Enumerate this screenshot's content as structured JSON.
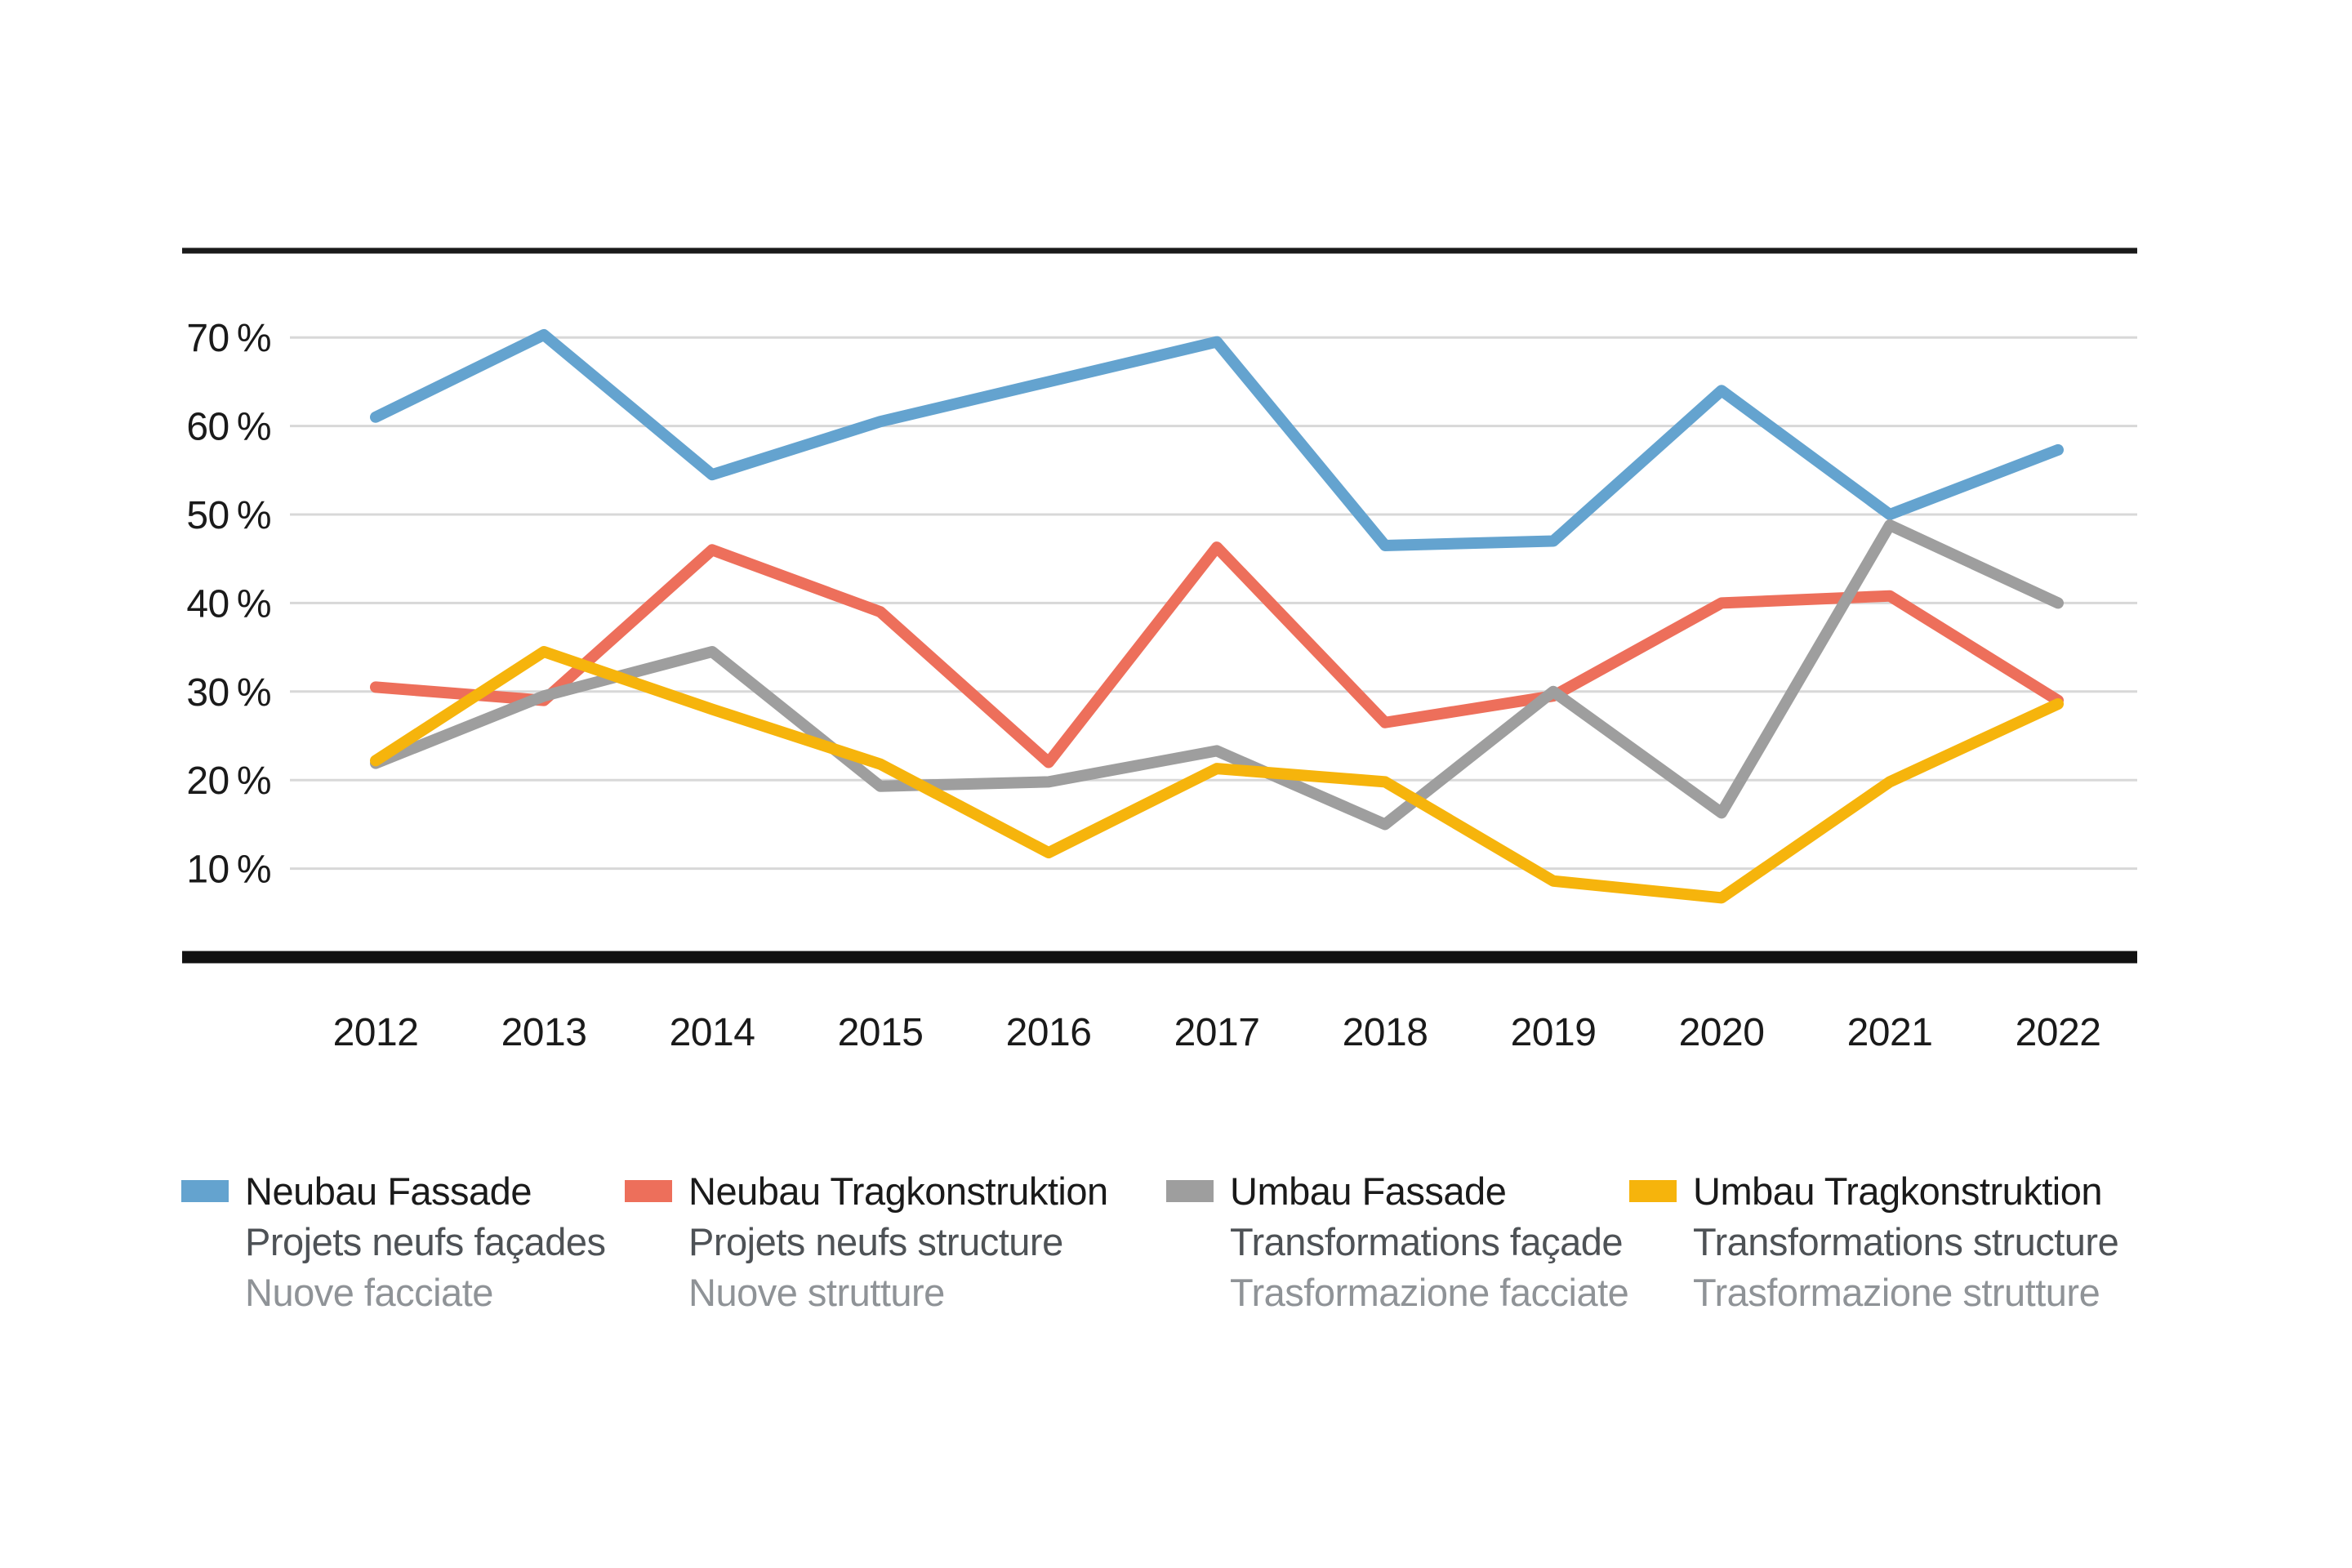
{
  "chart_data": {
    "type": "line",
    "title": "",
    "xlabel": "",
    "ylabel": "",
    "grid": true,
    "legend_position": "bottom",
    "ylim": [
      0,
      79
    ],
    "x": [
      2012,
      2013,
      2014,
      2015,
      2016,
      2017,
      2018,
      2019,
      2020,
      2021,
      2022
    ],
    "x_labels": [
      "2012",
      "2013",
      "2014",
      "2015",
      "2016",
      "2017",
      "2018",
      "2019",
      "2020",
      "2021",
      "2022"
    ],
    "yticks": [
      {
        "label": "70 %",
        "value": 70
      },
      {
        "label": "60 %",
        "value": 60
      },
      {
        "label": "50 %",
        "value": 50
      },
      {
        "label": "40 %",
        "value": 40
      },
      {
        "label": "30 %",
        "value": 30
      },
      {
        "label": "20 %",
        "value": 20
      },
      {
        "label": "10 %",
        "value": 10
      }
    ],
    "series": [
      {
        "name": "Neubau Fassade",
        "color": "#64A3CF",
        "values": [
          61.0,
          70.3,
          54.5,
          60.5,
          65.0,
          69.5,
          46.5,
          47.0,
          64.0,
          50.0,
          57.3
        ]
      },
      {
        "name": "Neubau Tragkonstruktion",
        "color": "#ED6F5B",
        "values": [
          30.5,
          29.0,
          46.0,
          39.0,
          22.0,
          46.3,
          26.5,
          29.5,
          40.0,
          40.8,
          29.0
        ]
      },
      {
        "name": "Umbau Fassade",
        "color": "#9E9E9E",
        "values": [
          21.9,
          29.5,
          34.5,
          19.3,
          19.8,
          23.3,
          15.0,
          30.0,
          16.3,
          48.8,
          40.0
        ]
      },
      {
        "name": "Umbau Tragkonstruktion",
        "color": "#F6B40C",
        "values": [
          22.2,
          34.5,
          28.0,
          21.8,
          11.8,
          21.3,
          19.8,
          8.6,
          6.7,
          19.8,
          28.6
        ]
      }
    ]
  },
  "legend": {
    "items": [
      {
        "title": "Neubau Fassade",
        "fr": "Projets neufs façades",
        "it": "Nuove facciate",
        "color": "#64A3CF"
      },
      {
        "title": "Neubau Tragkonstruktion",
        "fr": "Projets neufs structure",
        "it": "Nuove strutture",
        "color": "#ED6F5B"
      },
      {
        "title": "Umbau Fassade",
        "fr": "Transformations façade",
        "it": "Trasformazione facciate",
        "color": "#9E9E9E"
      },
      {
        "title": "Umbau Tragkonstruktion",
        "fr": "Transformations structure",
        "it": "Trasformazione strutture",
        "color": "#F6B40C"
      }
    ]
  }
}
